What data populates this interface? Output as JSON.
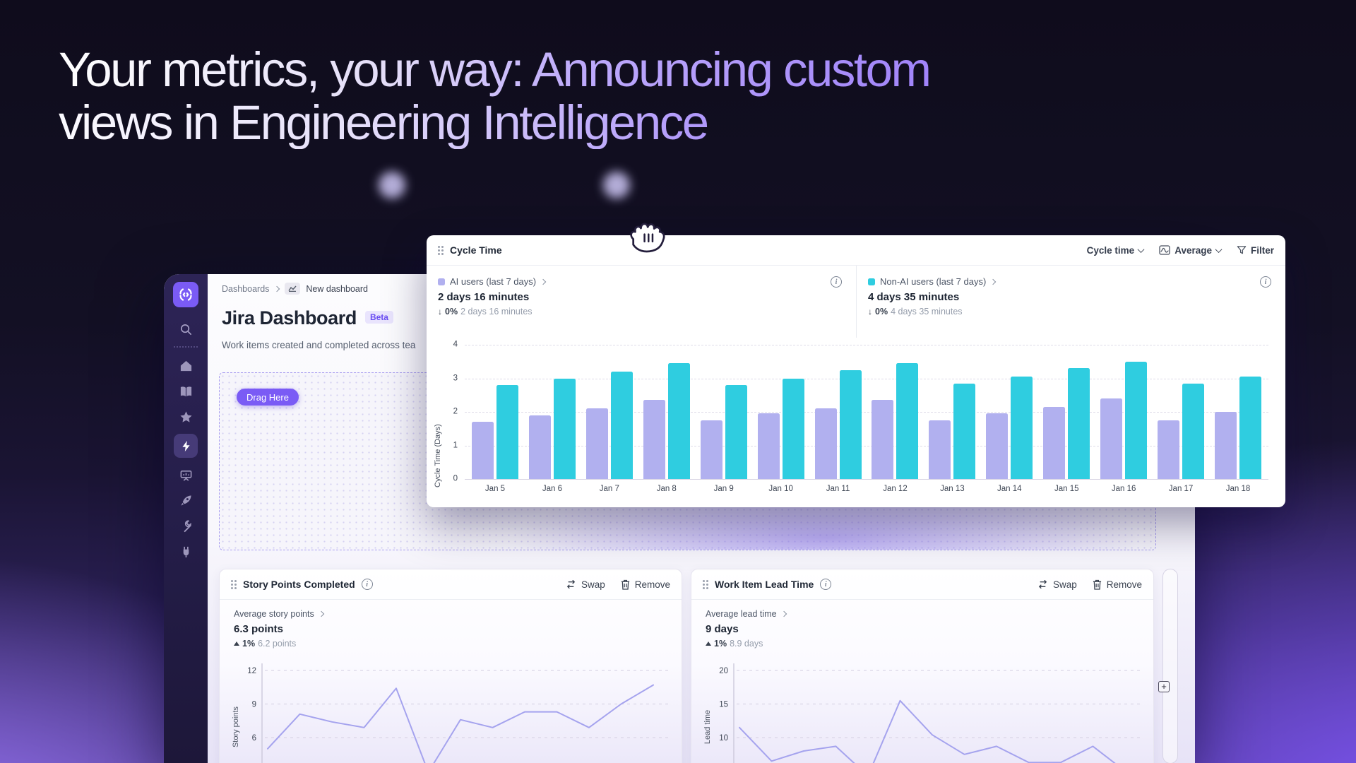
{
  "hero": {
    "line1": "Your metrics, your way: Announcing custom",
    "line2": "views in Engineering Intelligence"
  },
  "window": {
    "breadcrumb": {
      "root": "Dashboards",
      "current": "New dashboard"
    },
    "title": "Jira Dashboard",
    "badge": "Beta",
    "subtitle": "Work items created and completed across tea",
    "drop_zone": {
      "drag_label": "Drag Here"
    },
    "rail": {
      "add_label": "+"
    }
  },
  "cycle": {
    "title": "Cycle Time",
    "metric_selector": "Cycle time",
    "aggregation_selector": "Average",
    "filter_label": "Filter",
    "stats": [
      {
        "label": "AI users (last 7 days)",
        "value": "2 days 16 minutes",
        "delta_arrow": "↓",
        "delta_pct": "0%",
        "previous": "2 days 16 minutes",
        "swatch": "#b1b0ef"
      },
      {
        "label": "Non-AI users (last 7 days)",
        "value": "4 days 35 minutes",
        "delta_arrow": "↓",
        "delta_pct": "0%",
        "previous": "4 days 35 minutes",
        "swatch": "#2fcde0"
      }
    ]
  },
  "cards": [
    {
      "title": "Story Points Completed",
      "actions": {
        "swap": "Swap",
        "remove": "Remove"
      },
      "stat": {
        "label": "Average story points",
        "value": "6.3 points",
        "delta_pct": "1%",
        "previous": "6.2 points"
      }
    },
    {
      "title": "Work Item Lead Time",
      "actions": {
        "swap": "Swap",
        "remove": "Remove"
      },
      "stat": {
        "label": "Average lead time",
        "value": "9 days",
        "delta_pct": "1%",
        "previous": "8.9 days"
      }
    }
  ],
  "chart_data": [
    {
      "id": "cycle",
      "type": "bar",
      "title": "Cycle Time",
      "ylabel": "Cycle Time (Days)",
      "yticks": [
        4,
        3,
        2,
        1,
        0
      ],
      "ylim": [
        0,
        4
      ],
      "grid": "dashed-horizontal",
      "categories": [
        "Jan 5",
        "Jan 6",
        "Jan 7",
        "Jan 8",
        "Jan 9",
        "Jan 10",
        "Jan 11",
        "Jan 12",
        "Jan 13",
        "Jan 14",
        "Jan 15",
        "Jan 16",
        "Jan 17",
        "Jan 18"
      ],
      "series": [
        {
          "name": "AI users (last 7 days)",
          "color": "#b1b0ef",
          "values": [
            1.7,
            1.9,
            2.1,
            2.35,
            1.75,
            1.95,
            2.1,
            2.35,
            1.75,
            1.95,
            2.15,
            2.4,
            1.75,
            2.0
          ]
        },
        {
          "name": "Non-AI users (last 7 days)",
          "color": "#2fcde0",
          "values": [
            2.8,
            3.0,
            3.2,
            3.45,
            2.8,
            3.0,
            3.25,
            3.45,
            2.85,
            3.05,
            3.3,
            3.5,
            2.85,
            3.05
          ]
        }
      ]
    },
    {
      "id": "story",
      "type": "line",
      "ylabel": "Story points",
      "yticks": [
        12,
        9,
        6
      ],
      "color": "#a5a3ee",
      "grid": "dashed-horizontal",
      "values": [
        5.0,
        8.1,
        7.4,
        6.9,
        10.4,
        2.9,
        7.6,
        6.9,
        8.3,
        8.3,
        6.9,
        9.0,
        10.7
      ]
    },
    {
      "id": "lead",
      "type": "line",
      "ylabel": "Lead time",
      "yticks": [
        20,
        15,
        10
      ],
      "color": "#a5a3ee",
      "grid": "dashed-horizontal",
      "values": [
        11.5,
        6.5,
        8.0,
        8.7,
        4.3,
        15.5,
        10.4,
        7.5,
        8.7,
        6.3,
        6.3,
        8.7,
        5.0
      ]
    }
  ]
}
